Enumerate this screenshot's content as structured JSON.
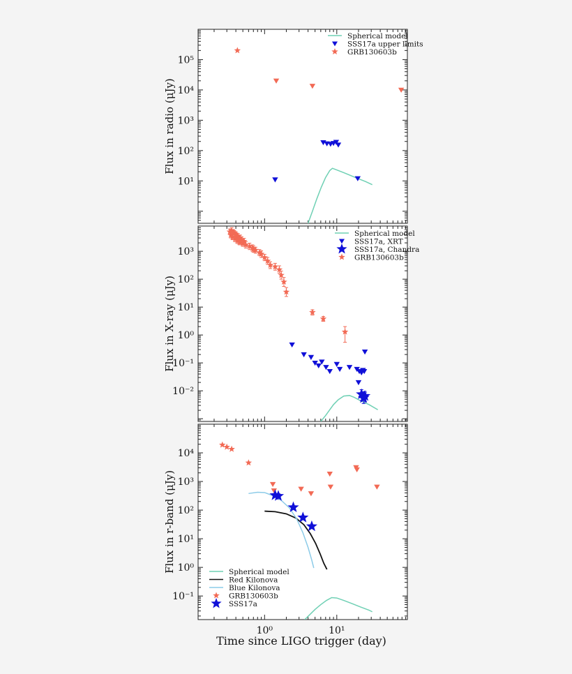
{
  "figure": {
    "xlabel": "Time since LIGO trigger (day)"
  },
  "colors": {
    "grb": "#f26a55",
    "sss": "#1010d8",
    "model": "#6fd0b4",
    "red_kilonova": "#111111",
    "blue_kilonova": "#8ccbe8"
  },
  "chart_data": [
    {
      "type": "scatter",
      "ylabel": "Flux in radio (μJy)",
      "xscale": "log",
      "yscale": "log",
      "xlim": [
        0.12,
        95
      ],
      "ylim": [
        0.4,
        1000000
      ],
      "x_ticks": [
        1,
        10
      ],
      "x_tick_labels": [
        "10⁰",
        "10¹"
      ],
      "y_ticks": [
        10,
        100,
        1000,
        10000,
        100000
      ],
      "y_tick_labels": [
        "10¹",
        "10²",
        "10³",
        "10⁴",
        "10⁵"
      ],
      "legend": [
        "Spherical model",
        "SSS17a upper limits",
        "GRB130603b"
      ],
      "series": [
        {
          "name": "Spherical model",
          "kind": "line",
          "color_key": "model",
          "x": [
            4.0,
            4.6,
            5.3,
            6.1,
            7.0,
            8.0,
            8.7,
            10.0,
            13.0,
            18.0,
            25.0,
            31.0
          ],
          "y": [
            0.4,
            1.0,
            2.6,
            6.2,
            13.0,
            22.0,
            26.0,
            23.0,
            18.0,
            13.0,
            9.5,
            7.5
          ]
        },
        {
          "name": "SSS17a upper limits",
          "kind": "tri_down",
          "color_key": "sss",
          "x": [
            1.4,
            6.5,
            7.3,
            8.2,
            9.0,
            9.8,
            10.5,
            19.5
          ],
          "y": [
            11,
            185,
            170,
            165,
            175,
            190,
            155,
            12
          ]
        },
        {
          "name": "GRB130603b",
          "kind": "star",
          "color_key": "grb",
          "x": [
            0.42
          ],
          "y": [
            200000
          ]
        },
        {
          "name": "GRB130603b upper limits",
          "kind": "tri_down",
          "color_key": "grb",
          "x": [
            1.45,
            4.6,
            78.0
          ],
          "y": [
            20000,
            13500,
            10000
          ]
        }
      ]
    },
    {
      "type": "scatter",
      "ylabel": "Flux in X-ray (μJy)",
      "xscale": "log",
      "yscale": "log",
      "xlim": [
        0.12,
        95
      ],
      "ylim": [
        0.0008,
        8000
      ],
      "x_ticks": [
        1,
        10
      ],
      "x_tick_labels": [
        "10⁰",
        "10¹"
      ],
      "y_ticks": [
        0.01,
        0.1,
        1,
        10,
        100,
        1000
      ],
      "y_tick_labels": [
        "10⁻²",
        "10⁻¹",
        "10⁰",
        "10¹",
        "10²",
        "10³"
      ],
      "legend": [
        "Spherical model",
        "SSS17a, XRT",
        "SSS17a, Chandra",
        "GRB130603b"
      ],
      "series": [
        {
          "name": "Spherical model",
          "kind": "line",
          "color_key": "model",
          "x": [
            6.0,
            7.0,
            8.0,
            9.0,
            10.5,
            12.5,
            15.0,
            17.5,
            21.0,
            28.0,
            37.0
          ],
          "y": [
            0.0008,
            0.0013,
            0.0021,
            0.0032,
            0.0048,
            0.0065,
            0.0068,
            0.0058,
            0.0045,
            0.0032,
            0.0021
          ]
        },
        {
          "name": "SSS17a, XRT",
          "kind": "tri_down",
          "color_key": "sss",
          "x": [
            2.4,
            3.5,
            4.4,
            5.0,
            5.6,
            6.2,
            7.1,
            8.0,
            10.0,
            11.0,
            15.0,
            19.0,
            20.5,
            22.0,
            23.0,
            24.0,
            20.0,
            24.5
          ],
          "y": [
            0.45,
            0.2,
            0.16,
            0.1,
            0.08,
            0.11,
            0.07,
            0.05,
            0.09,
            0.06,
            0.07,
            0.06,
            0.05,
            0.045,
            0.055,
            0.05,
            0.02,
            0.25
          ]
        },
        {
          "name": "SSS17a, Chandra",
          "kind": "star",
          "color_key": "sss",
          "x": [
            22.0,
            23.5,
            24.5
          ],
          "y": [
            0.0075,
            0.0055,
            0.0065
          ],
          "yerr_low": [
            0.0045,
            0.0035,
            0.004
          ],
          "yerr_high": [
            0.011,
            0.009,
            0.0095
          ]
        },
        {
          "name": "GRB130603b",
          "kind": "star",
          "color_key": "grb",
          "x": [
            0.35,
            0.37,
            0.4,
            0.43,
            0.46,
            0.34,
            0.38,
            0.41,
            0.44,
            0.48,
            0.36,
            0.39,
            0.42,
            0.45,
            0.5,
            0.52,
            0.33,
            0.55,
            0.62,
            0.68,
            0.7,
            0.75,
            0.85,
            0.9,
            1.0,
            1.1,
            1.2,
            1.4,
            1.6,
            1.7,
            1.85,
            2.0,
            4.6,
            6.5,
            13.0
          ],
          "y": [
            5500,
            4800,
            4000,
            3400,
            3000,
            3800,
            4400,
            3600,
            2900,
            2600,
            3200,
            2800,
            2400,
            2100,
            1900,
            2300,
            5000,
            1700,
            1500,
            1300,
            1200,
            1100,
            900,
            800,
            600,
            450,
            320,
            280,
            220,
            140,
            80,
            35,
            6.5,
            3.8,
            1.3
          ],
          "yerr_low": [
            4400,
            3800,
            3200,
            2700,
            2400,
            3000,
            3500,
            2900,
            2300,
            2100,
            2600,
            2200,
            1900,
            1700,
            1500,
            1800,
            4000,
            1300,
            1150,
            1000,
            920,
            850,
            700,
            600,
            460,
            340,
            240,
            210,
            165,
            100,
            55,
            24,
            5.2,
            3.1,
            0.55
          ],
          "yerr_high": [
            7000,
            6000,
            5000,
            4300,
            3800,
            4800,
            5500,
            4500,
            3700,
            3300,
            4000,
            3500,
            3000,
            2700,
            2400,
            2900,
            6300,
            2200,
            1950,
            1700,
            1550,
            1400,
            1150,
            1050,
            780,
            600,
            420,
            370,
            300,
            195,
            115,
            50,
            8.0,
            4.6,
            2.0
          ]
        }
      ]
    },
    {
      "type": "scatter",
      "ylabel": "Flux in r-band (μJy)",
      "xscale": "log",
      "yscale": "log",
      "xlim": [
        0.12,
        95
      ],
      "ylim": [
        0.015,
        100000
      ],
      "x_ticks": [
        1,
        10
      ],
      "x_tick_labels": [
        "10⁰",
        "10¹"
      ],
      "y_ticks": [
        0.1,
        1,
        10,
        100,
        1000,
        10000
      ],
      "y_tick_labels": [
        "10⁻¹",
        "10⁰",
        "10¹",
        "10²",
        "10³",
        "10⁴"
      ],
      "legend": [
        "Spherical model",
        "Red Kilonova",
        "Blue Kilonova",
        "GRB130603b",
        "SSS17a"
      ],
      "series": [
        {
          "name": "Spherical model",
          "kind": "line",
          "color_key": "model",
          "x": [
            3.6,
            4.2,
            5.0,
            6.0,
            7.2,
            8.5,
            10.0,
            12.5,
            16.0,
            21.0,
            28.0,
            31.0
          ],
          "y": [
            0.015,
            0.022,
            0.034,
            0.05,
            0.07,
            0.088,
            0.085,
            0.07,
            0.055,
            0.042,
            0.032,
            0.028
          ]
        },
        {
          "name": "Red Kilonova",
          "kind": "line",
          "color_key": "red_kilonova",
          "x": [
            1.0,
            1.4,
            2.0,
            2.7,
            3.5,
            4.3,
            5.1,
            5.9,
            6.6,
            7.3
          ],
          "y": [
            92,
            88,
            74,
            53,
            31,
            15,
            6.8,
            2.9,
            1.4,
            0.85
          ]
        },
        {
          "name": "Blue Kilonova",
          "kind": "line",
          "color_key": "blue_kilonova",
          "x": [
            0.6,
            0.8,
            1.0,
            1.3,
            1.7,
            2.2,
            2.8,
            3.4,
            4.0,
            4.5,
            4.8
          ],
          "y": [
            380,
            420,
            410,
            320,
            220,
            120,
            48,
            16,
            5.0,
            1.8,
            0.95
          ]
        },
        {
          "name": "GRB130603b",
          "kind": "star",
          "color_key": "grb",
          "x": [
            0.26,
            0.3,
            0.35,
            0.6
          ],
          "y": [
            19000,
            16000,
            13500,
            4500
          ]
        },
        {
          "name": "GRB130603b upper limits",
          "kind": "tri_down",
          "color_key": "grb",
          "x": [
            1.3,
            1.35,
            3.2,
            4.4,
            8.0,
            8.2,
            18.5,
            19.0,
            36.0
          ],
          "y": [
            800,
            480,
            550,
            380,
            1850,
            650,
            3100,
            2600,
            650
          ]
        },
        {
          "name": "SSS17a",
          "kind": "star",
          "color_key": "sss",
          "x": [
            1.4,
            1.55,
            2.5,
            3.4,
            4.5
          ],
          "y": [
            330,
            310,
            125,
            55,
            27
          ]
        }
      ]
    }
  ]
}
